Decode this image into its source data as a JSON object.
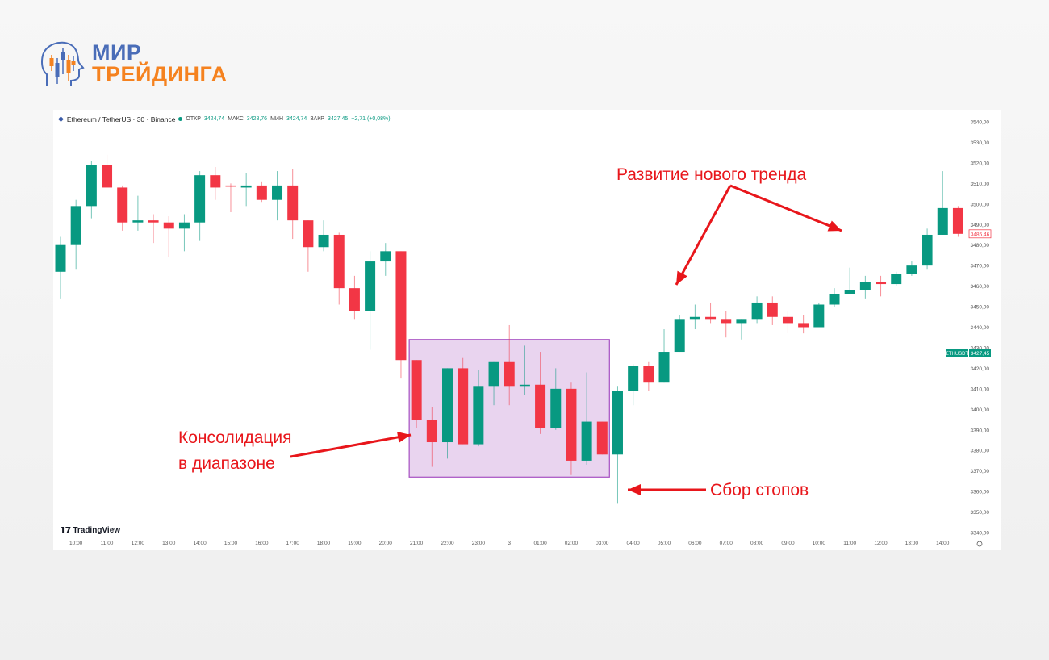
{
  "brand": {
    "line1": "МИР",
    "line2": "ТРЕЙДИНГА",
    "color_blue": "#4a6db8",
    "color_orange": "#f5821f"
  },
  "header": {
    "symbol": "Ethereum / TetherUS · 30 · Binance",
    "open_label": "ОТКР",
    "open": "3424,74",
    "high_label": "МАКС",
    "high": "3428,76",
    "low_label": "МИН",
    "low": "3424,74",
    "close_label": "ЗАКР",
    "close": "3427,45",
    "change": "+2,71 (+0,08%)"
  },
  "watermark": "TradingView",
  "annotations": {
    "trend": "Развитие нового тренда",
    "consolidation_1": "Консолидация",
    "consolidation_2": "в диапазоне",
    "stops": "Сбор стопов"
  },
  "chart_data": {
    "type": "candlestick",
    "interval": "30",
    "ylim": [
      3340,
      3540
    ],
    "y_ticks": [
      "3340,00",
      "3350,00",
      "3360,00",
      "3370,00",
      "3380,00",
      "3390,00",
      "3400,00",
      "3410,00",
      "3420,00",
      "3430,00",
      "3440,00",
      "3450,00",
      "3460,00",
      "3470,00",
      "3480,00",
      "3490,00",
      "3500,00",
      "3510,00",
      "3520,00",
      "3530,00",
      "3540,00"
    ],
    "x_ticks": [
      "10:00",
      "11:00",
      "12:00",
      "13:00",
      "14:00",
      "15:00",
      "16:00",
      "17:00",
      "18:00",
      "19:00",
      "20:00",
      "21:00",
      "22:00",
      "23:00",
      "3",
      "01:00",
      "02:00",
      "03:00",
      "04:00",
      "05:00",
      "06:00",
      "07:00",
      "08:00",
      "09:00",
      "10:00",
      "11:00",
      "12:00",
      "13:00",
      "14:00"
    ],
    "first_candle_time": "09:30",
    "candles_ohlc": [
      [
        3467,
        3484,
        3454,
        3480
      ],
      [
        3480,
        3502,
        3468,
        3499
      ],
      [
        3499,
        3521,
        3493,
        3519
      ],
      [
        3519,
        3524,
        3508,
        3508
      ],
      [
        3508,
        3509,
        3487,
        3491
      ],
      [
        3491,
        3504,
        3487,
        3492
      ],
      [
        3492,
        3495,
        3481,
        3491
      ],
      [
        3491,
        3494,
        3474,
        3488
      ],
      [
        3488,
        3495,
        3477,
        3491
      ],
      [
        3491,
        3516,
        3482,
        3514
      ],
      [
        3514,
        3518,
        3502,
        3508
      ],
      [
        3509,
        3510,
        3496,
        3508.5
      ],
      [
        3508,
        3515,
        3499,
        3509
      ],
      [
        3509,
        3511,
        3501,
        3502
      ],
      [
        3502,
        3516,
        3492,
        3509
      ],
      [
        3509,
        3517,
        3483,
        3492
      ],
      [
        3492,
        3492,
        3467,
        3479
      ],
      [
        3479,
        3492,
        3477,
        3485
      ],
      [
        3485,
        3486,
        3451,
        3459
      ],
      [
        3459,
        3465,
        3444,
        3448
      ],
      [
        3448,
        3477,
        3429,
        3472
      ],
      [
        3472,
        3481,
        3465,
        3477
      ],
      [
        3477,
        3477,
        3415,
        3424
      ],
      [
        3424,
        3424,
        3391,
        3395
      ],
      [
        3395,
        3401,
        3372,
        3384
      ],
      [
        3384,
        3420,
        3376,
        3420
      ],
      [
        3420,
        3425,
        3383,
        3383
      ],
      [
        3383,
        3419,
        3382,
        3411
      ],
      [
        3411,
        3423,
        3402,
        3423
      ],
      [
        3423,
        3441,
        3402,
        3411
      ],
      [
        3411,
        3431,
        3407,
        3412
      ],
      [
        3412,
        3428,
        3388,
        3391
      ],
      [
        3391,
        3420,
        3390,
        3410
      ],
      [
        3410,
        3413,
        3368,
        3375
      ],
      [
        3375,
        3418,
        3373,
        3394
      ],
      [
        3394,
        3394,
        3378,
        3378
      ],
      [
        3378,
        3411,
        3354,
        3409
      ],
      [
        3409,
        3422,
        3402,
        3421
      ],
      [
        3421,
        3423,
        3409,
        3413
      ],
      [
        3413,
        3439,
        3413,
        3428
      ],
      [
        3428,
        3446,
        3428,
        3444
      ],
      [
        3444,
        3451,
        3439,
        3445
      ],
      [
        3445,
        3452,
        3442,
        3444
      ],
      [
        3444,
        3448,
        3435,
        3442
      ],
      [
        3442,
        3444,
        3434,
        3444
      ],
      [
        3444,
        3455,
        3442,
        3452
      ],
      [
        3452,
        3455,
        3441,
        3445
      ],
      [
        3445,
        3448,
        3437,
        3442
      ],
      [
        3442,
        3446,
        3437,
        3440
      ],
      [
        3440,
        3452,
        3440,
        3451
      ],
      [
        3451,
        3459,
        3450,
        3456
      ],
      [
        3456,
        3469,
        3456,
        3458
      ],
      [
        3458,
        3465,
        3454,
        3462
      ],
      [
        3462,
        3465,
        3455,
        3461
      ],
      [
        3461,
        3467,
        3460,
        3466
      ],
      [
        3466,
        3472,
        3465,
        3470
      ],
      [
        3470,
        3488,
        3468,
        3485
      ],
      [
        3485,
        3516,
        3485,
        3498
      ],
      [
        3498,
        3499,
        3484,
        3485.46
      ]
    ],
    "last_price": {
      "symbol": "ETHUSDT",
      "value": "3427,45",
      "price": 3427.45
    },
    "current_price_label": {
      "value": "3485,46",
      "price": 3485.46
    },
    "range_box": {
      "from_candle": 24,
      "to_candle": 36,
      "top": 3434,
      "bottom": 3367
    },
    "up_color": "#089981",
    "down_color": "#f23645",
    "box_fill": "#e9d4ef",
    "box_border": "#a64fc2",
    "annotation_color": "#e8161b"
  }
}
